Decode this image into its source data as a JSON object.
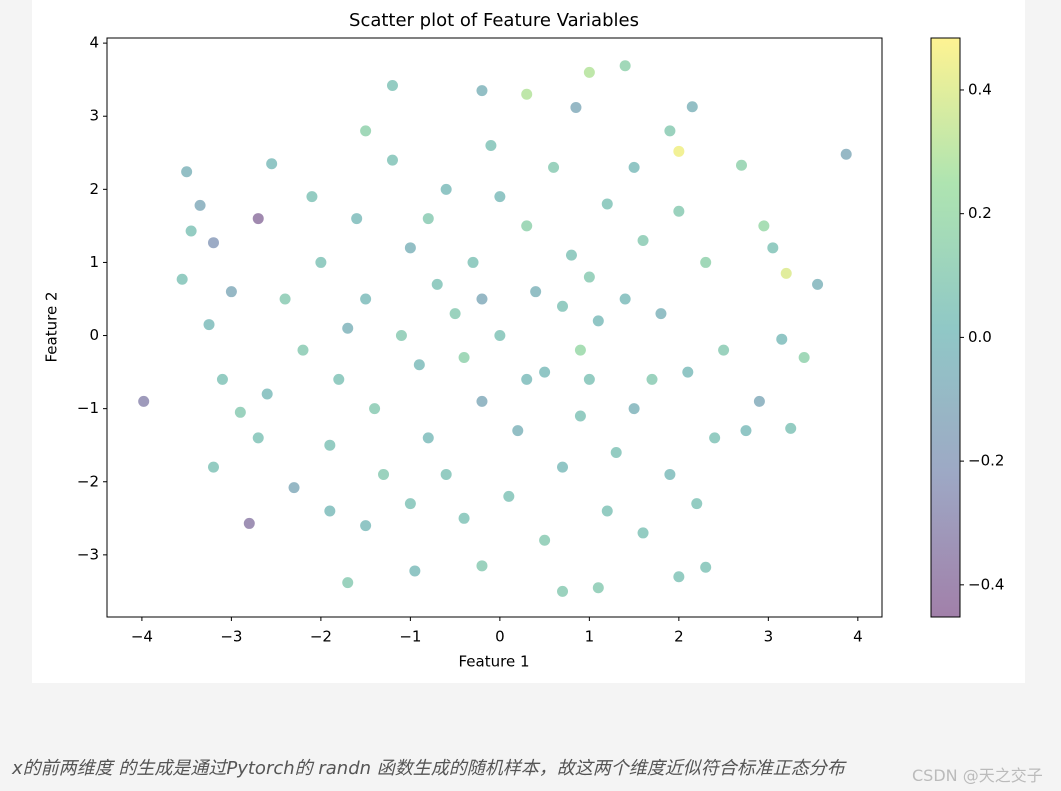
{
  "chart_data": {
    "type": "scatter",
    "title": "Scatter plot of Feature Variables",
    "xlabel": "Feature 1",
    "ylabel": "Feature 2",
    "x": [
      -3.98,
      3.87,
      -2.8,
      -3.5,
      -3.55,
      -3.35,
      -3.2,
      -3.2,
      3.55,
      3.25,
      3.4,
      1.4,
      1.0,
      -1.2,
      0.7,
      1.1,
      2.0,
      2.3,
      -1.7,
      -0.95,
      -0.2,
      2.15,
      -0.2,
      0.3,
      -2.7,
      2.0,
      3.2,
      2.7,
      -3.45,
      -3.25,
      -3.1,
      -2.9,
      2.95,
      3.05,
      2.9,
      2.75,
      -2.3,
      -1.9,
      1.6,
      2.2,
      -1.5,
      0.85,
      -2.55,
      1.9,
      -3.0,
      3.15,
      -1.5,
      -1.0,
      -0.5,
      0.0,
      0.5,
      1.0,
      1.5,
      -1.8,
      -0.8,
      0.3,
      1.2,
      -1.3,
      0.7,
      1.8,
      -2.0,
      -0.2,
      0.9,
      -0.6,
      1.6,
      -1.6,
      0.1,
      -1.1,
      0.4,
      1.3,
      -0.3,
      2.1,
      -2.2,
      -0.9,
      0.6,
      -0.4,
      1.9,
      -1.9,
      2.3,
      -2.4,
      0.2,
      -0.7,
      1.1,
      -1.4,
      0.8,
      -0.1,
      1.5,
      -1.2,
      2.5,
      -2.6,
      0.5,
      -0.6,
      1.7,
      -1.7,
      0.0,
      0.9,
      -0.4,
      1.4,
      -1.0,
      2.0,
      -2.1,
      0.3,
      -0.8,
      1.2,
      -1.5,
      2.4,
      -2.7,
      0.7,
      -0.2,
      1.0
    ],
    "y": [
      -0.9,
      2.48,
      -2.57,
      2.24,
      0.77,
      1.78,
      1.27,
      -1.8,
      0.7,
      -1.27,
      -0.3,
      3.69,
      3.6,
      3.42,
      -3.5,
      -3.45,
      -3.3,
      -3.17,
      -3.38,
      -3.22,
      -3.15,
      3.13,
      3.35,
      3.3,
      1.6,
      2.52,
      0.85,
      2.33,
      1.43,
      0.15,
      -0.6,
      -1.05,
      1.5,
      1.2,
      -0.9,
      -1.3,
      -2.08,
      -2.4,
      -2.7,
      -2.3,
      2.8,
      3.12,
      2.35,
      2.8,
      0.6,
      -0.05,
      0.5,
      1.2,
      0.3,
      0.0,
      -0.5,
      0.8,
      -1.0,
      -0.6,
      -1.4,
      1.5,
      1.8,
      -1.9,
      -1.8,
      0.3,
      1.0,
      -0.9,
      -0.2,
      2.0,
      1.3,
      1.6,
      -2.2,
      0.0,
      0.6,
      -1.6,
      1.0,
      -0.5,
      -0.2,
      -0.4,
      2.3,
      -2.5,
      -1.9,
      -1.5,
      1.0,
      0.5,
      -1.3,
      0.7,
      0.2,
      -1.0,
      1.1,
      2.6,
      2.3,
      2.4,
      -0.2,
      -0.8,
      -2.8,
      -1.9,
      -0.6,
      0.1,
      1.9,
      -1.1,
      -0.3,
      0.5,
      -2.3,
      1.7,
      1.9,
      -0.6,
      1.6,
      -2.4,
      -2.6,
      -1.4,
      -1.4,
      0.4,
      0.5,
      -0.6
    ],
    "c": [
      -0.3,
      -0.1,
      -0.35,
      -0.05,
      0.05,
      -0.1,
      -0.2,
      0.05,
      -0.05,
      0.05,
      0.15,
      0.15,
      0.3,
      0.05,
      0.1,
      0.1,
      0.05,
      0.05,
      0.1,
      0.0,
      0.1,
      -0.05,
      -0.05,
      0.3,
      -0.4,
      0.45,
      0.4,
      0.15,
      0.05,
      0.0,
      0.05,
      0.1,
      0.2,
      0.05,
      -0.1,
      0.0,
      -0.1,
      0.0,
      0.05,
      0.05,
      0.15,
      -0.1,
      0.0,
      0.1,
      -0.1,
      0.0,
      0.0,
      -0.05,
      0.1,
      0.05,
      0.0,
      0.1,
      -0.05,
      0.05,
      0.0,
      0.15,
      0.05,
      0.1,
      0.0,
      -0.05,
      0.05,
      -0.1,
      0.2,
      0.0,
      0.1,
      0.0,
      0.05,
      0.1,
      -0.05,
      0.05,
      0.05,
      0.0,
      0.1,
      0.0,
      0.1,
      0.05,
      0.0,
      0.05,
      0.15,
      0.1,
      -0.05,
      0.05,
      0.0,
      0.1,
      0.05,
      0.05,
      0.0,
      0.05,
      0.1,
      0.0,
      0.1,
      0.05,
      0.1,
      -0.05,
      0.0,
      0.05,
      0.15,
      0.0,
      0.05,
      0.1,
      0.05,
      0.0,
      0.1,
      0.05,
      0.0,
      0.05,
      0.05,
      0.05,
      -0.1,
      0.05
    ],
    "cmap": "viridis",
    "alpha": 0.5,
    "xlim": [
      -4.39,
      4.27
    ],
    "ylim": [
      -3.85,
      4.07
    ],
    "xticks": [
      {
        "value": -4,
        "label": "−4"
      },
      {
        "value": -3,
        "label": "−3"
      },
      {
        "value": -2,
        "label": "−2"
      },
      {
        "value": -1,
        "label": "−1"
      },
      0,
      1,
      2,
      3,
      4
    ],
    "yticks": [
      {
        "value": -3,
        "label": "−3"
      },
      {
        "value": -2,
        "label": "−2"
      },
      {
        "value": -1,
        "label": "−1"
      },
      0,
      1,
      2,
      3,
      4
    ],
    "clim": [
      -0.452,
      0.484
    ],
    "cticks": [
      {
        "value": -0.4,
        "label": "−0.4"
      },
      {
        "value": -0.2,
        "label": "−0.2"
      },
      {
        "value": 0,
        "label": "0.0"
      },
      0.2,
      0.4
    ]
  },
  "caption": "x的前两维度 的生成是通过Pytorch的 randn 函数生成的随机样本，故这两个维度近似符合标准正态分布",
  "watermark": "CSDN @天之交子"
}
